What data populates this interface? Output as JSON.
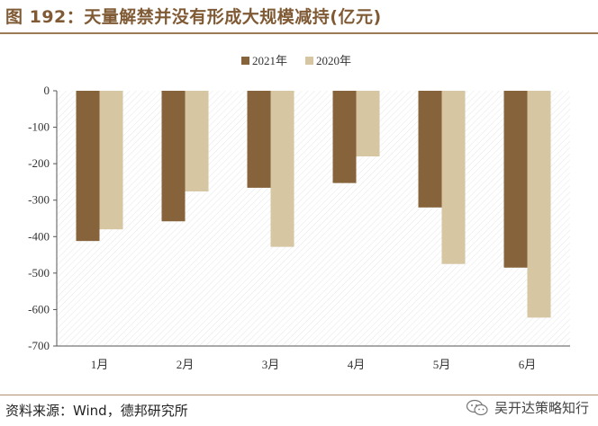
{
  "header": {
    "title": "图 192：天量解禁并没有形成大规模减持(亿元)"
  },
  "footer": {
    "source": "资料来源：Wind，德邦研究所",
    "watermark": "吴开达策略知行"
  },
  "colors": {
    "series_2021": "#86633a",
    "series_2020": "#d6c6a2",
    "accent": "#7f5a34"
  },
  "icons": {
    "watermark": "wechat-icon"
  },
  "chart_data": {
    "type": "bar",
    "title": "",
    "xlabel": "",
    "ylabel": "",
    "categories": [
      "1月",
      "2月",
      "3月",
      "4月",
      "5月",
      "6月"
    ],
    "series": [
      {
        "name": "2021年",
        "values": [
          -412,
          -358,
          -266,
          -253,
          -320,
          -485
        ]
      },
      {
        "name": "2020年",
        "values": [
          -380,
          -276,
          -428,
          -180,
          -475,
          -622
        ]
      }
    ],
    "ylim": [
      -700,
      0
    ],
    "yticks": [
      0,
      -100,
      -200,
      -300,
      -400,
      -500,
      -600,
      -700
    ],
    "grid": "hatched background",
    "legend": "top-center"
  }
}
